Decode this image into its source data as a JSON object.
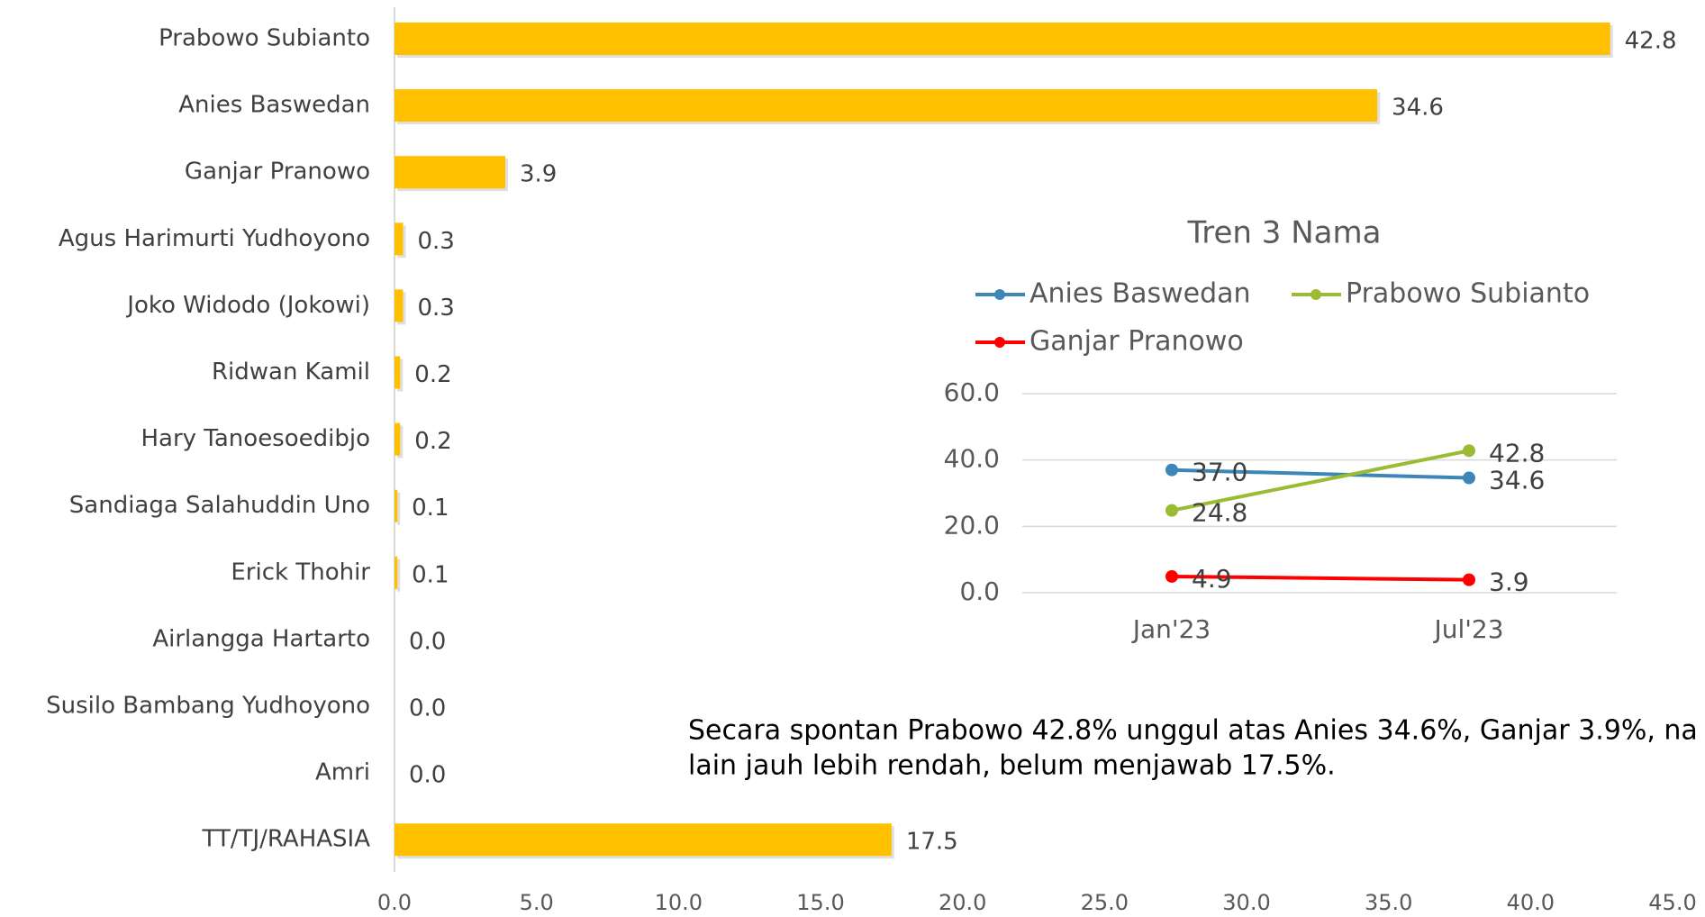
{
  "chart_data": [
    {
      "type": "bar",
      "categories": [
        "Prabowo Subianto",
        "Anies Baswedan",
        "Ganjar Pranowo",
        "Agus Harimurti Yudhoyono",
        "Joko Widodo (Jokowi)",
        "Ridwan Kamil",
        "Hary Tanoesoedibjo",
        "Sandiaga Salahuddin Uno",
        "Erick Thohir",
        "Airlangga Hartarto",
        "Susilo Bambang Yudhoyono",
        "Amri",
        "TT/TJ/RAHASIA"
      ],
      "values": [
        42.8,
        34.6,
        3.9,
        0.3,
        0.3,
        0.2,
        0.2,
        0.1,
        0.1,
        0.0,
        0.0,
        0.0,
        17.5
      ],
      "value_labels": [
        "42.8",
        "34.6",
        "3.9",
        "0.3",
        "0.3",
        "0.2",
        "0.2",
        "0.1",
        "0.1",
        "0.0",
        "0.0",
        "0.0",
        "17.5"
      ],
      "color": "#ffc000",
      "xlim": [
        0,
        45
      ],
      "xticks": [
        {
          "value": 0,
          "label": "0.0"
        },
        {
          "value": 5,
          "label": "5.0"
        },
        {
          "value": 10,
          "label": "10.0"
        },
        {
          "value": 15,
          "label": "15.0"
        },
        {
          "value": 20,
          "label": "20.0"
        },
        {
          "value": 25,
          "label": "25.0"
        },
        {
          "value": 30,
          "label": "30.0"
        },
        {
          "value": 35,
          "label": "35.0"
        },
        {
          "value": 40,
          "label": "40.0"
        },
        {
          "value": 45,
          "label": "45.0"
        }
      ],
      "annotations": [
        "Secara spontan Prabowo 42.8% unggul atas Anies 34.6%, Ganjar 3.9%, na",
        "lain jauh lebih rendah, belum menjawab 17.5%."
      ]
    },
    {
      "type": "line",
      "title": "Tren 3 Nama",
      "categories": [
        "Jan'23",
        "Jul'23"
      ],
      "series": [
        {
          "name": "Anies Baswedan",
          "color": "#3f86b8",
          "values": [
            37.0,
            34.6
          ],
          "value_labels": [
            "37.0",
            "34.6"
          ]
        },
        {
          "name": "Prabowo Subianto",
          "color": "#9bbb34",
          "values": [
            24.8,
            42.8
          ],
          "value_labels": [
            "24.8",
            "42.8"
          ]
        },
        {
          "name": "Ganjar Pranowo",
          "color": "#ff0000",
          "values": [
            4.9,
            3.9
          ],
          "value_labels": [
            "4.9",
            "3.9"
          ]
        }
      ],
      "ylim": [
        0,
        60
      ],
      "yticks": [
        {
          "value": 0,
          "label": "0.0"
        },
        {
          "value": 20,
          "label": "20.0"
        },
        {
          "value": 40,
          "label": "40.0"
        },
        {
          "value": 60,
          "label": "60.0"
        }
      ],
      "grid": true
    }
  ]
}
